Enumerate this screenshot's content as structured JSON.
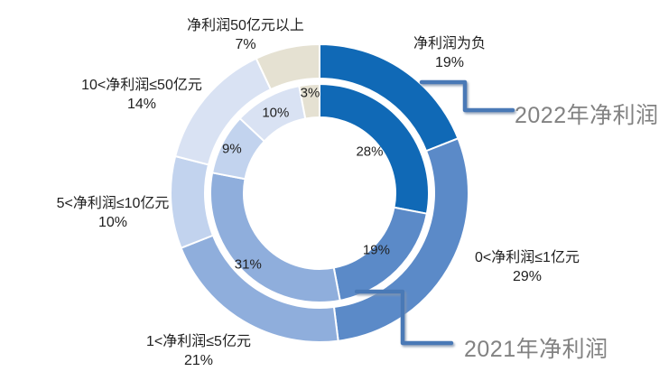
{
  "chart_data": {
    "type": "pie",
    "subtype": "double-ring-donut",
    "title": "",
    "unit": "%",
    "background": "#ffffff",
    "categories": [
      "净利润为负",
      "0<净利润≤1亿元",
      "1<净利润≤5亿元",
      "5<净利润≤10亿元",
      "10<净利润≤50亿元",
      "净利润50亿元以上"
    ],
    "series": [
      {
        "name": "2022年净利润",
        "ring": "outer",
        "values": [
          19,
          29,
          21,
          10,
          14,
          7
        ]
      },
      {
        "name": "2021年净利润",
        "ring": "inner",
        "values": [
          28,
          19,
          31,
          9,
          10,
          3
        ]
      }
    ],
    "colors": [
      "#1069B6",
      "#5B8AC8",
      "#8FAEDC",
      "#C2D3EE",
      "#D9E2F3",
      "#E5E1D2"
    ],
    "outer_labels": [
      "净利润为负 19%",
      "0<净利润≤1亿元 29%",
      "1<净利润≤5亿元 21%",
      "5<净利润≤10亿元 10%",
      "10<净利润≤50亿元 14%",
      "净利润50亿元以上 7%"
    ],
    "inner_labels": [
      "28%",
      "19%",
      "31%",
      "9%",
      "10%",
      "3%"
    ],
    "legend_position": "callouts",
    "callout_line_color": "#4A79B6",
    "callout_text_color": "#828282",
    "label_text_color": "#1f1f1f",
    "segment_border_color": "#ffffff",
    "start_angle_deg": 0,
    "direction": "clockwise"
  }
}
